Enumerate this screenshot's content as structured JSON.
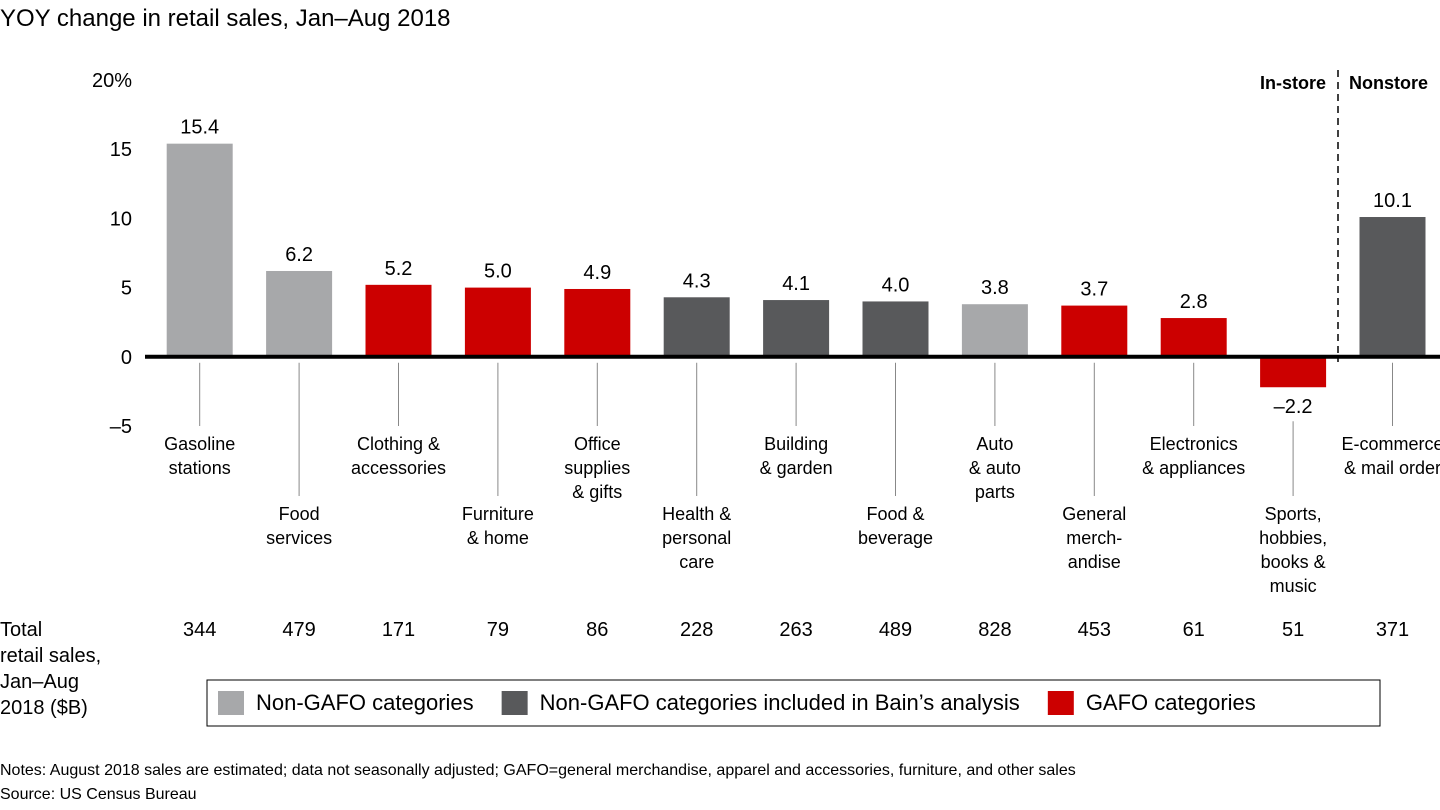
{
  "chart_data": {
    "type": "bar",
    "title": "YOY change in retail sales, Jan–Aug 2018",
    "categories": [
      "Gasoline\nstations",
      "Food\nservices",
      "Clothing &\naccessories",
      "Furniture\n& home",
      "Office\nsupplies\n& gifts",
      "Health &\npersonal\ncare",
      "Building\n& garden",
      "Food &\nbeverage",
      "Auto\n& auto\nparts",
      "General\nmerch-\nandise",
      "Electronics\n& appliances",
      "Sports,\nhobbies,\nbooks &\nmusic",
      "E-commerce\n& mail order"
    ],
    "values": [
      15.4,
      6.2,
      5.2,
      5.0,
      4.9,
      4.3,
      4.1,
      4.0,
      3.8,
      3.7,
      2.8,
      -2.2,
      10.1
    ],
    "value_labels": [
      "15.4",
      "6.2",
      "5.2",
      "5.0",
      "4.9",
      "4.3",
      "4.1",
      "4.0",
      "3.8",
      "3.7",
      "2.8",
      "–2.2",
      "10.1"
    ],
    "groups": [
      0,
      0,
      2,
      2,
      2,
      1,
      1,
      1,
      0,
      2,
      2,
      2,
      1
    ],
    "legend": [
      {
        "name": "Non-GAFO categories",
        "color": "#a7a8aa"
      },
      {
        "name": "Non-GAFO categories included in Bain’s analysis",
        "color": "#58595b"
      },
      {
        "name": "GAFO categories",
        "color": "#cc0000"
      }
    ],
    "legend_position": "bottom",
    "ylim": [
      -5,
      20
    ],
    "yticks": [
      {
        "value": -5,
        "label": "–5"
      },
      0,
      5,
      10,
      15,
      {
        "value": 20,
        "label": "20%"
      }
    ],
    "grid": false,
    "segments": [
      "In-store",
      "Nonstore"
    ],
    "totals_label": "Total\nretail sales,\nJan–Aug\n2018 ($B)",
    "totals": [
      344,
      479,
      171,
      79,
      86,
      228,
      263,
      489,
      828,
      453,
      61,
      51,
      371
    ],
    "notes": "Notes: August 2018 sales are estimated; data not seasonally adjusted; GAFO=general merchandise, apparel and accessories, furniture, and other sales",
    "source": "Source: US Census Bureau"
  }
}
